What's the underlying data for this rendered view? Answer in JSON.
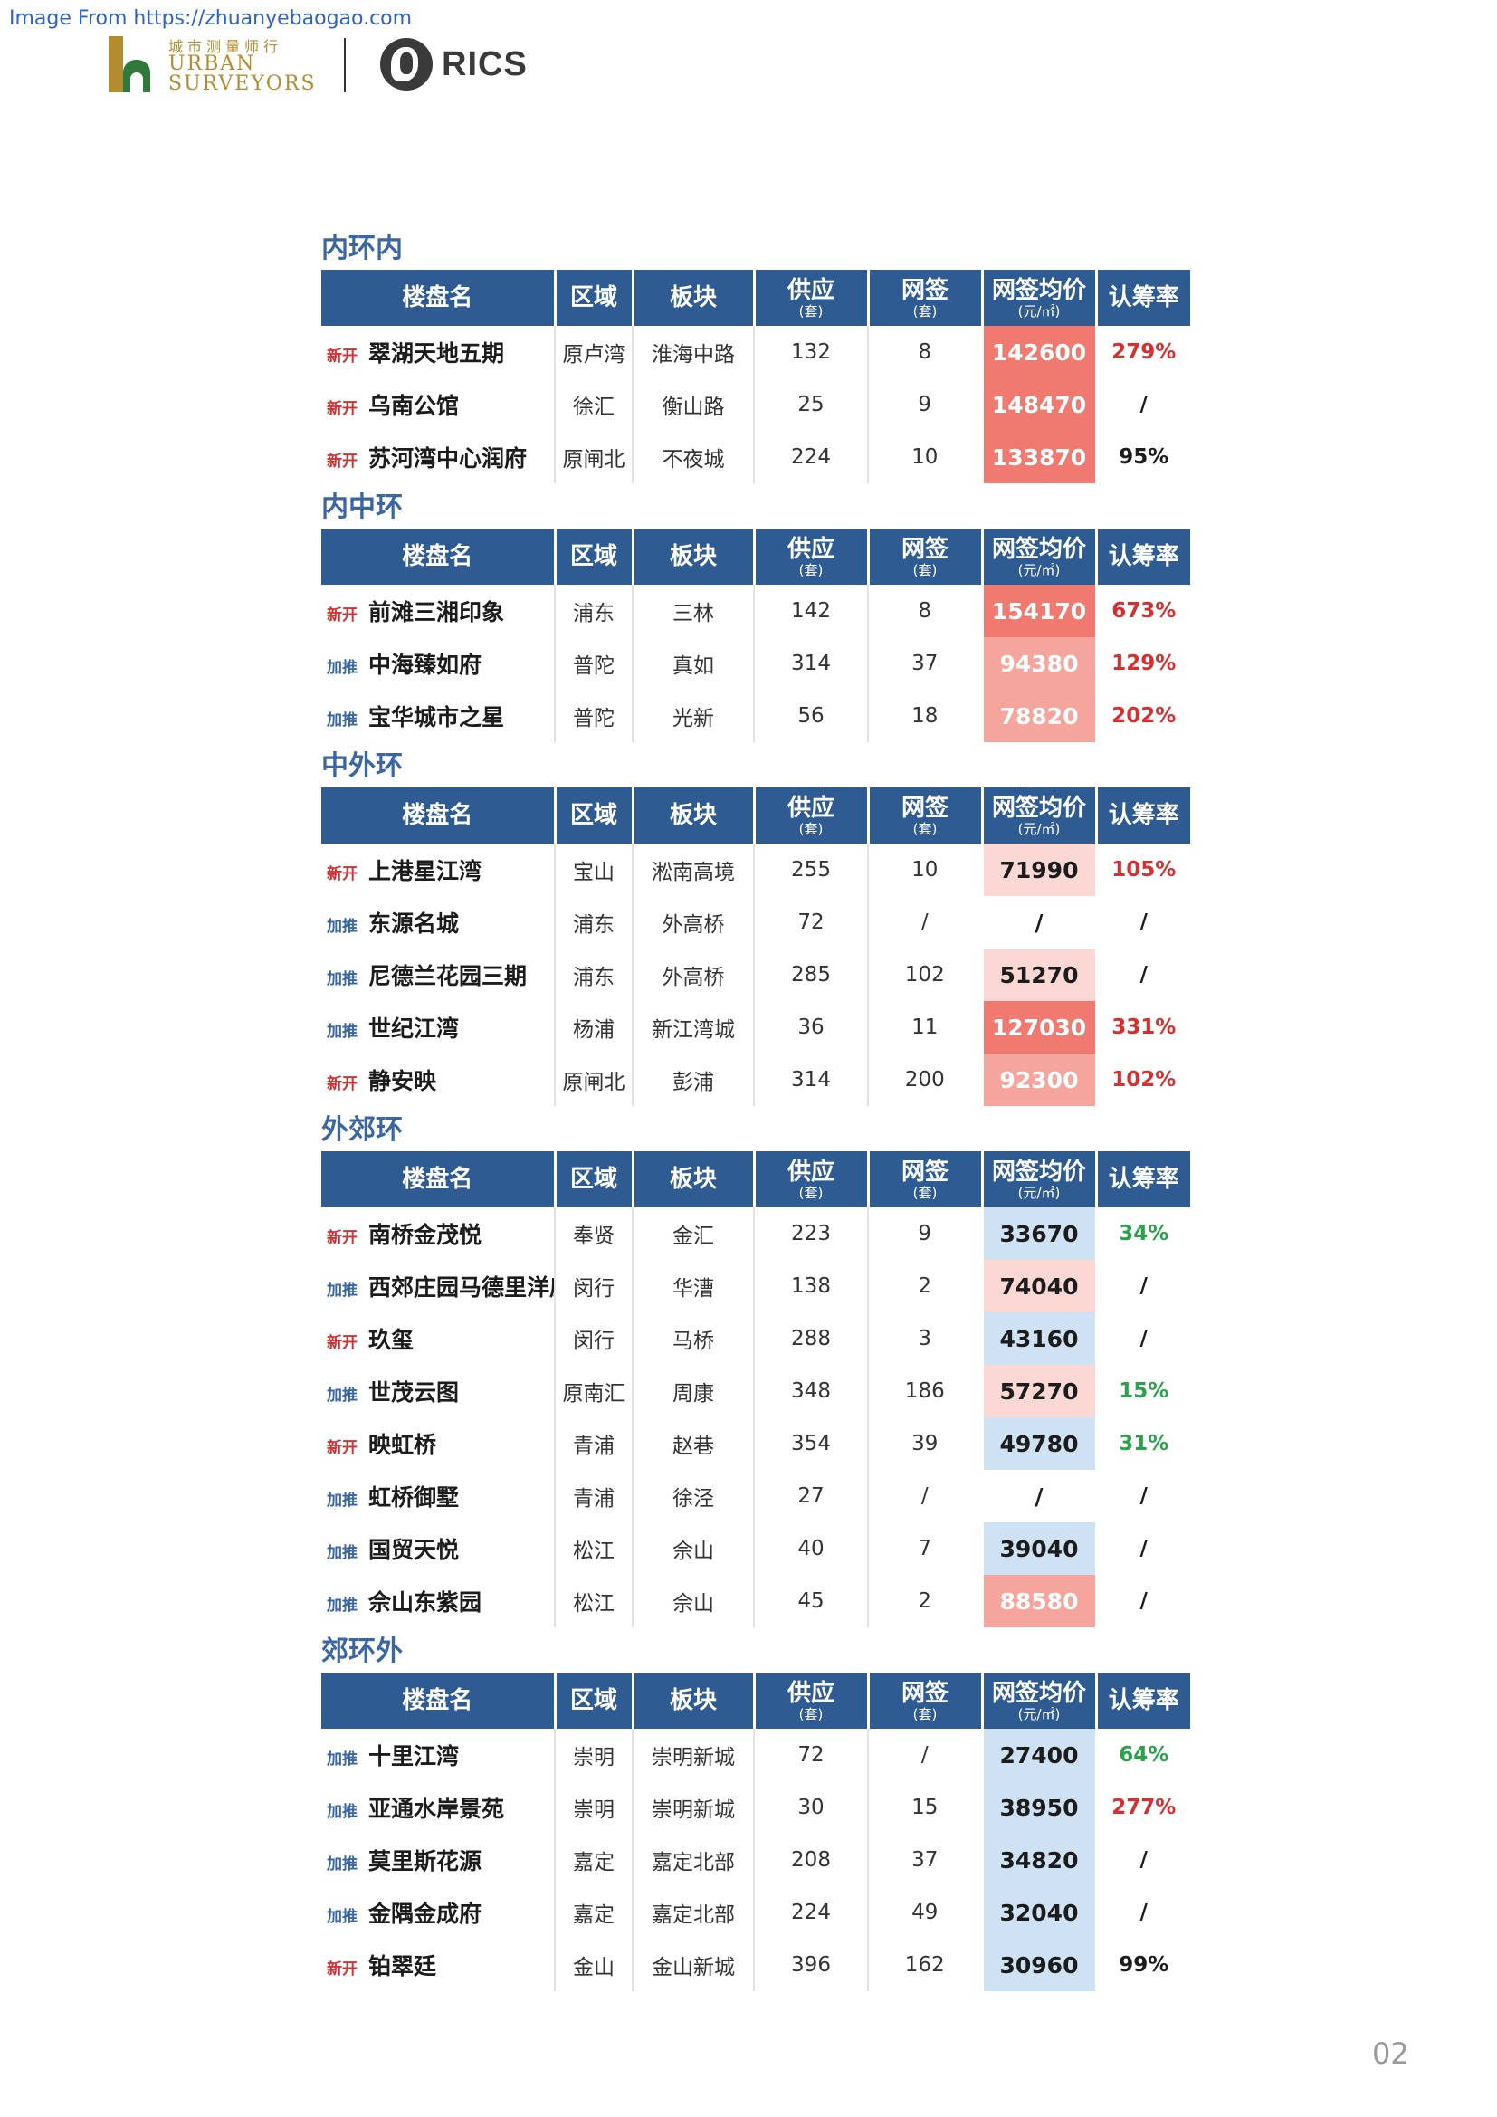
{
  "source_text": "Image From https://zhuanyebaogao.com",
  "logo": {
    "cn": "城市测量师行",
    "en_line1": "URBAN",
    "en_line2": "SURVEYORS",
    "rics": "RICS"
  },
  "headers": {
    "name": "楼盘名",
    "area": "区域",
    "block": "板块",
    "supply": "供应",
    "supply_unit": "(套)",
    "sign": "网签",
    "sign_unit": "(套)",
    "price": "网签均价",
    "price_unit": "(元/㎡)",
    "rate": "认筹率"
  },
  "colors": {
    "header_bg": "#2f5b93",
    "title": "#3a66a4",
    "price_red_dark": "#f07a70",
    "price_red_mid": "#f6a59d",
    "price_red_light": "#fbd8d4",
    "price_blue": "#cfe2f4",
    "rate_red": "#d62f2f",
    "rate_green": "#2aa24a",
    "rate_black": "#1c1c1c"
  },
  "sections": [
    {
      "title": "内环内",
      "rows": [
        {
          "tag": "新开",
          "tag_type": "new",
          "name": "翠湖天地五期",
          "area": "原卢湾",
          "block": "淮海中路",
          "supply": "132",
          "sign": "8",
          "price": "142600",
          "price_level": "red-dark",
          "rate": "279%",
          "rate_color": "red"
        },
        {
          "tag": "新开",
          "tag_type": "new",
          "name": "乌南公馆",
          "area": "徐汇",
          "block": "衡山路",
          "supply": "25",
          "sign": "9",
          "price": "148470",
          "price_level": "red-dark",
          "rate": "/",
          "rate_color": "black"
        },
        {
          "tag": "新开",
          "tag_type": "new",
          "name": "苏河湾中心润府",
          "area": "原闸北",
          "block": "不夜城",
          "supply": "224",
          "sign": "10",
          "price": "133870",
          "price_level": "red-dark",
          "rate": "95%",
          "rate_color": "black"
        }
      ]
    },
    {
      "title": "内中环",
      "rows": [
        {
          "tag": "新开",
          "tag_type": "new",
          "name": "前滩三湘印象",
          "area": "浦东",
          "block": "三林",
          "supply": "142",
          "sign": "8",
          "price": "154170",
          "price_level": "red-dark",
          "rate": "673%",
          "rate_color": "red"
        },
        {
          "tag": "加推",
          "tag_type": "add",
          "name": "中海臻如府",
          "area": "普陀",
          "block": "真如",
          "supply": "314",
          "sign": "37",
          "price": "94380",
          "price_level": "red-mid",
          "rate": "129%",
          "rate_color": "red"
        },
        {
          "tag": "加推",
          "tag_type": "add",
          "name": "宝华城市之星",
          "area": "普陀",
          "block": "光新",
          "supply": "56",
          "sign": "18",
          "price": "78820",
          "price_level": "red-mid",
          "rate": "202%",
          "rate_color": "red"
        }
      ]
    },
    {
      "title": "中外环",
      "rows": [
        {
          "tag": "新开",
          "tag_type": "new",
          "name": "上港星江湾",
          "area": "宝山",
          "block": "淞南高境",
          "supply": "255",
          "sign": "10",
          "price": "71990",
          "price_level": "red-light",
          "rate": "105%",
          "rate_color": "red"
        },
        {
          "tag": "加推",
          "tag_type": "add",
          "name": "东源名城",
          "area": "浦东",
          "block": "外高桥",
          "supply": "72",
          "sign": "/",
          "price": "/",
          "price_level": "none",
          "rate": "/",
          "rate_color": "black"
        },
        {
          "tag": "加推",
          "tag_type": "add",
          "name": "尼德兰花园三期",
          "area": "浦东",
          "block": "外高桥",
          "supply": "285",
          "sign": "102",
          "price": "51270",
          "price_level": "red-light",
          "rate": "/",
          "rate_color": "black"
        },
        {
          "tag": "加推",
          "tag_type": "add",
          "name": "世纪江湾",
          "area": "杨浦",
          "block": "新江湾城",
          "supply": "36",
          "sign": "11",
          "price": "127030",
          "price_level": "red-dark",
          "rate": "331%",
          "rate_color": "red"
        },
        {
          "tag": "新开",
          "tag_type": "new",
          "name": "静安映",
          "area": "原闸北",
          "block": "彭浦",
          "supply": "314",
          "sign": "200",
          "price": "92300",
          "price_level": "red-mid",
          "rate": "102%",
          "rate_color": "red"
        }
      ]
    },
    {
      "title": "外郊环",
      "rows": [
        {
          "tag": "新开",
          "tag_type": "new",
          "name": "南桥金茂悦",
          "area": "奉贤",
          "block": "金汇",
          "supply": "223",
          "sign": "9",
          "price": "33670",
          "price_level": "blue",
          "rate": "34%",
          "rate_color": "green"
        },
        {
          "tag": "加推",
          "tag_type": "add",
          "name": "西郊庄园马德里洋房",
          "area": "闵行",
          "block": "华漕",
          "supply": "138",
          "sign": "2",
          "price": "74040",
          "price_level": "red-light",
          "rate": "/",
          "rate_color": "black"
        },
        {
          "tag": "新开",
          "tag_type": "new",
          "name": "玖玺",
          "area": "闵行",
          "block": "马桥",
          "supply": "288",
          "sign": "3",
          "price": "43160",
          "price_level": "blue",
          "rate": "/",
          "rate_color": "black"
        },
        {
          "tag": "加推",
          "tag_type": "add",
          "name": "世茂云图",
          "area": "原南汇",
          "block": "周康",
          "supply": "348",
          "sign": "186",
          "price": "57270",
          "price_level": "red-light",
          "rate": "15%",
          "rate_color": "green"
        },
        {
          "tag": "新开",
          "tag_type": "new",
          "name": "映虹桥",
          "area": "青浦",
          "block": "赵巷",
          "supply": "354",
          "sign": "39",
          "price": "49780",
          "price_level": "blue",
          "rate": "31%",
          "rate_color": "green"
        },
        {
          "tag": "加推",
          "tag_type": "add",
          "name": "虹桥御墅",
          "area": "青浦",
          "block": "徐泾",
          "supply": "27",
          "sign": "/",
          "price": "/",
          "price_level": "none",
          "rate": "/",
          "rate_color": "black"
        },
        {
          "tag": "加推",
          "tag_type": "add",
          "name": "国贸天悦",
          "area": "松江",
          "block": "佘山",
          "supply": "40",
          "sign": "7",
          "price": "39040",
          "price_level": "blue",
          "rate": "/",
          "rate_color": "black"
        },
        {
          "tag": "加推",
          "tag_type": "add",
          "name": "佘山东紫园",
          "area": "松江",
          "block": "佘山",
          "supply": "45",
          "sign": "2",
          "price": "88580",
          "price_level": "red-mid",
          "rate": "/",
          "rate_color": "black"
        }
      ]
    },
    {
      "title": "郊环外",
      "rows": [
        {
          "tag": "加推",
          "tag_type": "add",
          "name": "十里江湾",
          "area": "崇明",
          "block": "崇明新城",
          "supply": "72",
          "sign": "/",
          "price": "27400",
          "price_level": "blue",
          "rate": "64%",
          "rate_color": "green"
        },
        {
          "tag": "加推",
          "tag_type": "add",
          "name": "亚通水岸景苑",
          "area": "崇明",
          "block": "崇明新城",
          "supply": "30",
          "sign": "15",
          "price": "38950",
          "price_level": "blue",
          "rate": "277%",
          "rate_color": "red"
        },
        {
          "tag": "加推",
          "tag_type": "add",
          "name": "莫里斯花源",
          "area": "嘉定",
          "block": "嘉定北部",
          "supply": "208",
          "sign": "37",
          "price": "34820",
          "price_level": "blue",
          "rate": "/",
          "rate_color": "black"
        },
        {
          "tag": "加推",
          "tag_type": "add",
          "name": "金隅金成府",
          "area": "嘉定",
          "block": "嘉定北部",
          "supply": "224",
          "sign": "49",
          "price": "32040",
          "price_level": "blue",
          "rate": "/",
          "rate_color": "black"
        },
        {
          "tag": "新开",
          "tag_type": "new",
          "name": "铂翠廷",
          "area": "金山",
          "block": "金山新城",
          "supply": "396",
          "sign": "162",
          "price": "30960",
          "price_level": "blue",
          "rate": "99%",
          "rate_color": "black"
        }
      ]
    }
  ],
  "page_number": "02"
}
